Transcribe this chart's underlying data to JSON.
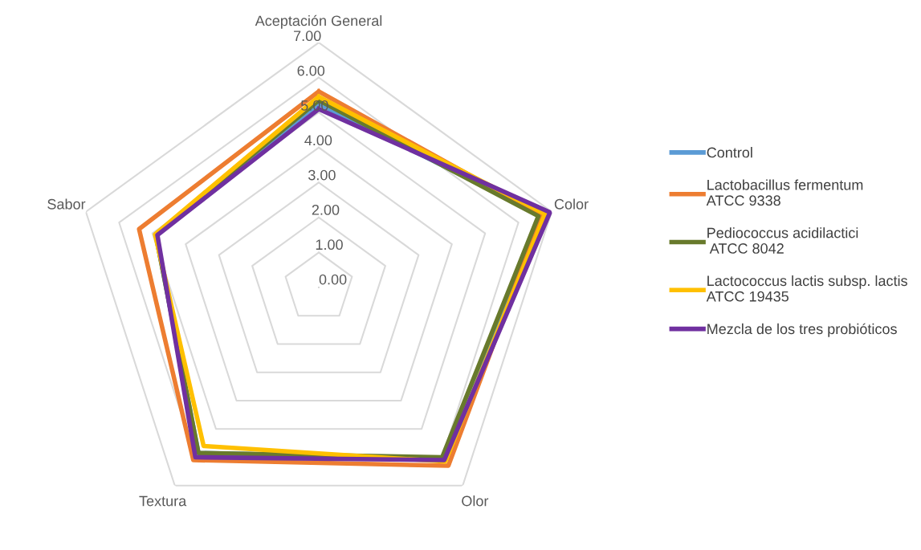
{
  "chart_data": {
    "type": "radar",
    "categories": [
      "Aceptación General",
      "Color",
      "Olor",
      "Textura",
      "Sabor"
    ],
    "series": [
      {
        "name": "Control",
        "color": "#5b9bd5",
        "values": [
          5.25,
          6.7,
          6.05,
          5.85,
          4.9
        ]
      },
      {
        "name": "Lactobacillus fermentum\nATCC 9338",
        "color": "#ed7d31",
        "values": [
          5.6,
          6.7,
          6.3,
          6.1,
          5.4
        ]
      },
      {
        "name": "Pediococcus acidilactici\n ATCC 8042",
        "color": "#687a2c",
        "values": [
          5.35,
          6.6,
          6.0,
          5.85,
          4.9
        ]
      },
      {
        "name": "Lactococcus lactis subsp. lactis\nATCC 19435",
        "color": "#ffc000",
        "values": [
          5.45,
          6.8,
          6.15,
          5.6,
          4.92
        ]
      },
      {
        "name": "Mezcla de los tres probióticos",
        "color": "#7030a0",
        "values": [
          5.1,
          6.95,
          6.1,
          6.0,
          4.85
        ]
      }
    ],
    "ylim": [
      0,
      7
    ],
    "yticks": [
      {
        "value": 0,
        "label": "0.00"
      },
      {
        "value": 1,
        "label": "1.00"
      },
      {
        "value": 2,
        "label": "2.00"
      },
      {
        "value": 3,
        "label": "3.00"
      },
      {
        "value": 4,
        "label": "4.00"
      },
      {
        "value": 5,
        "label": "5.00"
      },
      {
        "value": 6,
        "label": "6.00"
      },
      {
        "value": 7,
        "label": "7.00"
      }
    ],
    "grid": true,
    "legend": "right",
    "marker": "none"
  }
}
